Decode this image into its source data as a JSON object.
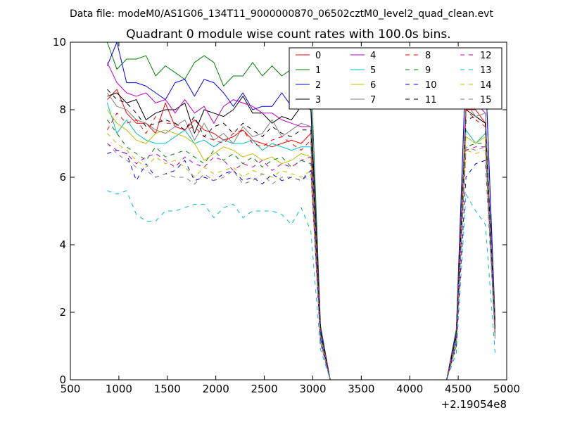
{
  "chart_data": {
    "type": "line",
    "suptitle": "Data file: modeM0/AS1G06_134T11_9000000870_06502cztM0_level2_quad_clean.evt",
    "title": "Quadrant 0 module wise count rates with 100.0s bins.",
    "xlabel": "",
    "ylabel": "",
    "x_offset_label": "+2.19054e8",
    "xlim": [
      500,
      5000
    ],
    "ylim": [
      0,
      10
    ],
    "x_ticks": [
      "500",
      "1000",
      "1500",
      "2000",
      "2500",
      "3000",
      "3500",
      "4000",
      "4500",
      "5000"
    ],
    "y_ticks": [
      "0",
      "2",
      "4",
      "6",
      "8",
      "10"
    ],
    "grid": false,
    "legend_position": "top-right",
    "x": [
      880,
      980,
      1080,
      1180,
      1280,
      1380,
      1480,
      1580,
      1680,
      1780,
      1880,
      1980,
      2080,
      2180,
      2280,
      2380,
      2480,
      2580,
      2680,
      2780,
      2880,
      2980,
      3080,
      3180,
      3280,
      3380,
      3480,
      3580,
      3680,
      3780,
      3880,
      3980,
      4080,
      4180,
      4280,
      4380,
      4480,
      4580,
      4680,
      4780,
      4880
    ],
    "series": [
      {
        "name": "0",
        "color": "#ff0000",
        "dash": "solid",
        "values": [
          8.3,
          8.6,
          7.9,
          7.6,
          7.6,
          7.3,
          8.2,
          7.5,
          7.4,
          7.7,
          7.4,
          7.3,
          7.1,
          7.2,
          7.4,
          7.1,
          7.0,
          6.9,
          7.0,
          7.1,
          7.0,
          7.3,
          1.4,
          0,
          0,
          0,
          0,
          0,
          0,
          0,
          0,
          0,
          0,
          0,
          0,
          0,
          1.3,
          8.0,
          8.0,
          7.6,
          1.6
        ]
      },
      {
        "name": "1",
        "color": "#008000",
        "dash": "solid",
        "values": [
          10.0,
          9.2,
          9.5,
          9.5,
          9.6,
          9.0,
          9.3,
          9.1,
          8.9,
          9.4,
          9.6,
          9.4,
          8.7,
          9.0,
          9.0,
          9.4,
          9.0,
          9.3,
          9.0,
          9.2,
          9.2,
          9.2,
          1.6,
          0,
          0,
          0,
          0,
          0,
          0,
          0,
          0,
          0,
          0,
          0,
          0,
          0,
          1.5,
          9.3,
          8.8,
          9.2,
          1.8
        ]
      },
      {
        "name": "2",
        "color": "#0000ff",
        "dash": "solid",
        "values": [
          9.3,
          10.0,
          8.8,
          8.8,
          8.7,
          8.5,
          8.3,
          8.8,
          8.9,
          8.4,
          8.9,
          8.8,
          8.5,
          8.1,
          8.5,
          8.0,
          8.1,
          8.1,
          8.5,
          8.1,
          8.5,
          8.2,
          1.5,
          0,
          0,
          0,
          0,
          0,
          0,
          0,
          0,
          0,
          0,
          0,
          0,
          0,
          1.4,
          9.4,
          8.7,
          9.2,
          1.7
        ]
      },
      {
        "name": "3",
        "color": "#000000",
        "dash": "solid",
        "values": [
          8.4,
          8.5,
          8.2,
          8.3,
          7.7,
          7.9,
          8.0,
          8.0,
          8.2,
          7.3,
          8.0,
          7.9,
          7.8,
          8.0,
          8.4,
          7.9,
          7.9,
          7.6,
          7.8,
          7.7,
          8.1,
          8.0,
          1.4,
          0,
          0,
          0,
          0,
          0,
          0,
          0,
          0,
          0,
          0,
          0,
          0,
          0,
          1.3,
          8.0,
          7.8,
          7.6,
          1.6
        ]
      },
      {
        "name": "4",
        "color": "#bf00bf",
        "dash": "solid",
        "values": [
          9.4,
          8.8,
          8.5,
          8.4,
          8.5,
          8.2,
          8.3,
          7.9,
          8.3,
          7.9,
          8.1,
          7.6,
          8.1,
          8.3,
          8.2,
          8.1,
          7.9,
          7.9,
          7.7,
          7.6,
          7.5,
          7.5,
          1.4,
          0,
          0,
          0,
          0,
          0,
          0,
          0,
          0,
          0,
          0,
          0,
          0,
          0,
          1.3,
          8.0,
          8.2,
          7.9,
          1.6
        ]
      },
      {
        "name": "5",
        "color": "#00bfbf",
        "dash": "solid",
        "values": [
          8.2,
          7.3,
          7.7,
          7.3,
          7.1,
          7.0,
          7.0,
          7.2,
          7.4,
          7.0,
          7.1,
          6.9,
          7.1,
          7.0,
          7.0,
          7.1,
          6.8,
          7.0,
          6.9,
          6.8,
          6.9,
          6.9,
          1.3,
          0,
          0,
          0,
          0,
          0,
          0,
          0,
          0,
          0,
          0,
          0,
          0,
          0,
          1.2,
          7.4,
          7.0,
          7.3,
          1.4
        ]
      },
      {
        "name": "6",
        "color": "#bfbf00",
        "dash": "solid",
        "values": [
          8.0,
          7.6,
          7.4,
          7.1,
          7.0,
          7.3,
          7.4,
          7.3,
          7.2,
          7.0,
          6.5,
          6.7,
          6.9,
          6.8,
          6.6,
          6.7,
          6.5,
          6.6,
          6.4,
          6.5,
          6.7,
          6.6,
          1.2,
          0,
          0,
          0,
          0,
          0,
          0,
          0,
          0,
          0,
          0,
          0,
          0,
          0,
          1.1,
          7.2,
          7.0,
          7.2,
          1.4
        ]
      },
      {
        "name": "7",
        "color": "#808080",
        "dash": "solid",
        "values": [
          8.5,
          8.1,
          8.0,
          7.7,
          7.6,
          7.4,
          7.3,
          7.5,
          7.7,
          7.1,
          7.6,
          7.1,
          7.3,
          7.0,
          7.5,
          7.2,
          7.3,
          7.7,
          7.2,
          7.4,
          7.6,
          7.5,
          1.4,
          0,
          0,
          0,
          0,
          0,
          0,
          0,
          0,
          0,
          0,
          0,
          0,
          0,
          1.3,
          8.2,
          7.8,
          7.9,
          1.6
        ]
      },
      {
        "name": "8",
        "color": "#ff0000",
        "dash": "dashed",
        "values": [
          7.4,
          7.9,
          7.6,
          7.7,
          7.3,
          7.8,
          7.6,
          7.6,
          7.4,
          7.5,
          7.2,
          7.1,
          7.0,
          7.3,
          7.4,
          7.0,
          6.9,
          7.1,
          7.2,
          7.0,
          6.8,
          7.1,
          1.4,
          0,
          0,
          0,
          0,
          0,
          0,
          0,
          0,
          0,
          0,
          0,
          0,
          0,
          1.3,
          8.0,
          7.7,
          7.5,
          1.5
        ]
      },
      {
        "name": "9",
        "color": "#008000",
        "dash": "dashed",
        "values": [
          7.7,
          7.3,
          6.9,
          6.7,
          6.5,
          6.9,
          6.6,
          6.7,
          6.8,
          6.6,
          6.4,
          6.8,
          6.5,
          6.7,
          6.4,
          6.6,
          6.3,
          6.5,
          6.6,
          6.3,
          6.5,
          6.4,
          1.2,
          0,
          0,
          0,
          0,
          0,
          0,
          0,
          0,
          0,
          0,
          0,
          0,
          0,
          1.1,
          6.9,
          7.0,
          7.0,
          1.3
        ]
      },
      {
        "name": "10",
        "color": "#0000ff",
        "dash": "dashed",
        "values": [
          6.7,
          6.8,
          6.7,
          5.9,
          6.4,
          6.0,
          6.1,
          6.2,
          6.5,
          5.9,
          6.0,
          5.9,
          6.1,
          6.2,
          5.9,
          6.0,
          5.8,
          6.1,
          5.9,
          6.0,
          5.9,
          6.2,
          1.1,
          0,
          0,
          0,
          0,
          0,
          0,
          0,
          0,
          0,
          0,
          0,
          0,
          0,
          1.0,
          6.0,
          6.4,
          6.5,
          1.3
        ]
      },
      {
        "name": "11",
        "color": "#000000",
        "dash": "dashed",
        "values": [
          8.6,
          8.3,
          8.2,
          7.9,
          7.5,
          7.6,
          7.7,
          7.6,
          7.4,
          7.8,
          7.2,
          7.5,
          7.6,
          7.3,
          7.6,
          7.4,
          7.2,
          7.5,
          7.3,
          7.2,
          7.4,
          7.4,
          1.4,
          0,
          0,
          0,
          0,
          0,
          0,
          0,
          0,
          0,
          0,
          0,
          0,
          0,
          1.3,
          7.7,
          7.8,
          7.6,
          1.5
        ]
      },
      {
        "name": "12",
        "color": "#bf00bf",
        "dash": "dashed",
        "values": [
          7.0,
          6.8,
          6.7,
          6.4,
          6.6,
          6.7,
          6.5,
          6.3,
          6.6,
          6.4,
          6.3,
          6.6,
          6.5,
          6.2,
          6.4,
          6.3,
          6.5,
          6.2,
          6.4,
          6.3,
          6.5,
          6.6,
          1.2,
          0,
          0,
          0,
          0,
          0,
          0,
          0,
          0,
          0,
          0,
          0,
          0,
          0,
          1.1,
          6.8,
          6.9,
          6.9,
          1.3
        ]
      },
      {
        "name": "13",
        "color": "#00bfbf",
        "dash": "dashed",
        "values": [
          5.6,
          5.5,
          5.6,
          4.9,
          4.7,
          4.7,
          5.0,
          5.0,
          5.1,
          5.2,
          5.2,
          4.8,
          5.1,
          5.2,
          4.8,
          5.0,
          5.0,
          5.0,
          4.9,
          4.6,
          5.1,
          4.4,
          0.9,
          0,
          0,
          0,
          0,
          0,
          0,
          0,
          0,
          0,
          0,
          0,
          0,
          0,
          0.8,
          5.5,
          5.0,
          4.6,
          0.8
        ]
      },
      {
        "name": "14",
        "color": "#bfbf00",
        "dash": "dashed",
        "values": [
          7.3,
          7.0,
          6.8,
          6.5,
          6.3,
          6.6,
          6.4,
          6.5,
          6.3,
          6.0,
          6.3,
          6.1,
          6.2,
          6.3,
          6.0,
          6.2,
          6.1,
          6.0,
          6.2,
          6.1,
          6.0,
          6.2,
          1.1,
          0,
          0,
          0,
          0,
          0,
          0,
          0,
          0,
          0,
          0,
          0,
          0,
          0,
          1.0,
          6.8,
          6.7,
          6.8,
          1.2
        ]
      },
      {
        "name": "15",
        "color": "#808080",
        "dash": "dashed",
        "values": [
          7.0,
          6.7,
          6.5,
          6.3,
          6.2,
          6.0,
          6.1,
          6.0,
          6.0,
          5.8,
          6.1,
          5.9,
          6.0,
          6.2,
          5.8,
          5.9,
          6.1,
          5.8,
          6.0,
          6.0,
          5.9,
          6.1,
          1.1,
          0,
          0,
          0,
          0,
          0,
          0,
          0,
          0,
          0,
          0,
          0,
          0,
          0,
          1.0,
          6.9,
          6.8,
          6.9,
          1.2
        ]
      }
    ]
  }
}
